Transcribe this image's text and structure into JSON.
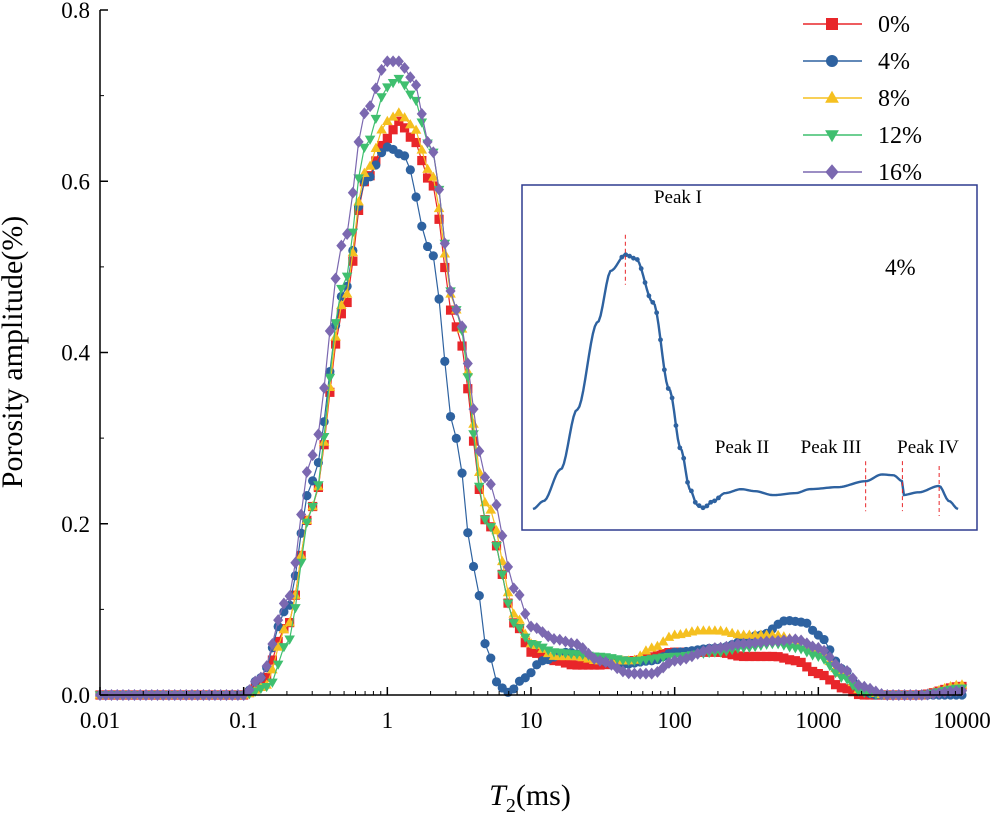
{
  "chart_data": {
    "type": "line",
    "xscale": "log",
    "xlim": [
      0.01,
      10000
    ],
    "ylim": [
      0,
      0.8
    ],
    "xticks": [
      0.01,
      0.1,
      1,
      10,
      100,
      1000,
      10000
    ],
    "xtick_labels": [
      "0.01",
      "0.1",
      "1",
      "10",
      "100",
      "1000",
      "10000"
    ],
    "yticks": [
      0,
      0.2,
      0.4,
      0.6,
      0.8
    ],
    "ytick_labels": [
      "0.0",
      "0.2",
      "0.4",
      "0.6",
      "0.8"
    ],
    "xlabel_main": "T",
    "xlabel_sub": "2",
    "xlabel_unit": "(ms)",
    "ylabel": "Porosity amplitude(%)",
    "legend_position": "top-right",
    "series": [
      {
        "name": "0%",
        "color": "#e8262a",
        "marker": "square",
        "points": [
          [
            0.01,
            0
          ],
          [
            0.1,
            0
          ],
          [
            0.13,
            0.01
          ],
          [
            0.2,
            0.08
          ],
          [
            0.3,
            0.22
          ],
          [
            0.5,
            0.45
          ],
          [
            0.7,
            0.6
          ],
          [
            1,
            0.65
          ],
          [
            1.2,
            0.67
          ],
          [
            1.5,
            0.65
          ],
          [
            2,
            0.6
          ],
          [
            3,
            0.43
          ],
          [
            5,
            0.2
          ],
          [
            8,
            0.08
          ],
          [
            10,
            0.05
          ],
          [
            15,
            0.04
          ],
          [
            20,
            0.035
          ],
          [
            30,
            0.035
          ],
          [
            50,
            0.04
          ],
          [
            100,
            0.05
          ],
          [
            200,
            0.05
          ],
          [
            300,
            0.045
          ],
          [
            500,
            0.045
          ],
          [
            700,
            0.04
          ],
          [
            1000,
            0.025
          ],
          [
            1500,
            0.008
          ],
          [
            2000,
            0
          ],
          [
            5000,
            0
          ],
          [
            10000,
            0.01
          ]
        ]
      },
      {
        "name": "4%",
        "color": "#2e62a0",
        "marker": "circle",
        "points": [
          [
            0.01,
            0
          ],
          [
            0.1,
            0
          ],
          [
            0.13,
            0.02
          ],
          [
            0.2,
            0.1
          ],
          [
            0.3,
            0.25
          ],
          [
            0.5,
            0.47
          ],
          [
            0.7,
            0.6
          ],
          [
            1,
            0.64
          ],
          [
            1.3,
            0.63
          ],
          [
            2,
            0.52
          ],
          [
            3,
            0.3
          ],
          [
            4,
            0.15
          ],
          [
            5,
            0.05
          ],
          [
            6,
            0.01
          ],
          [
            7,
            0.003
          ],
          [
            9,
            0.02
          ],
          [
            12,
            0.04
          ],
          [
            18,
            0.05
          ],
          [
            25,
            0.045
          ],
          [
            40,
            0.035
          ],
          [
            70,
            0.04
          ],
          [
            100,
            0.05
          ],
          [
            200,
            0.055
          ],
          [
            400,
            0.07
          ],
          [
            600,
            0.087
          ],
          [
            800,
            0.085
          ],
          [
            1000,
            0.07
          ],
          [
            1500,
            0.03
          ],
          [
            2000,
            0.005
          ],
          [
            2500,
            0
          ],
          [
            10000,
            0
          ]
        ]
      },
      {
        "name": "8%",
        "color": "#f5c020",
        "marker": "triangle-up",
        "points": [
          [
            0.01,
            0
          ],
          [
            0.1,
            0
          ],
          [
            0.14,
            0.01
          ],
          [
            0.2,
            0.08
          ],
          [
            0.3,
            0.22
          ],
          [
            0.5,
            0.46
          ],
          [
            0.7,
            0.61
          ],
          [
            1,
            0.67
          ],
          [
            1.2,
            0.68
          ],
          [
            1.5,
            0.665
          ],
          [
            2,
            0.61
          ],
          [
            3,
            0.45
          ],
          [
            5,
            0.22
          ],
          [
            8,
            0.09
          ],
          [
            10,
            0.06
          ],
          [
            15,
            0.045
          ],
          [
            20,
            0.045
          ],
          [
            30,
            0.04
          ],
          [
            50,
            0.04
          ],
          [
            70,
            0.055
          ],
          [
            100,
            0.07
          ],
          [
            150,
            0.075
          ],
          [
            200,
            0.075
          ],
          [
            300,
            0.07
          ],
          [
            500,
            0.07
          ],
          [
            700,
            0.065
          ],
          [
            1000,
            0.05
          ],
          [
            1500,
            0.025
          ],
          [
            2000,
            0.005
          ],
          [
            3000,
            0
          ],
          [
            5000,
            0
          ],
          [
            10000,
            0.012
          ]
        ]
      },
      {
        "name": "12%",
        "color": "#3fbf6f",
        "marker": "triangle-down",
        "points": [
          [
            0.01,
            0
          ],
          [
            0.1,
            0
          ],
          [
            0.15,
            0.01
          ],
          [
            0.2,
            0.06
          ],
          [
            0.3,
            0.22
          ],
          [
            0.5,
            0.48
          ],
          [
            0.7,
            0.64
          ],
          [
            1,
            0.71
          ],
          [
            1.2,
            0.72
          ],
          [
            1.5,
            0.7
          ],
          [
            2,
            0.64
          ],
          [
            3,
            0.45
          ],
          [
            5,
            0.2
          ],
          [
            8,
            0.08
          ],
          [
            10,
            0.06
          ],
          [
            15,
            0.05
          ],
          [
            20,
            0.048
          ],
          [
            30,
            0.045
          ],
          [
            50,
            0.04
          ],
          [
            100,
            0.045
          ],
          [
            200,
            0.05
          ],
          [
            300,
            0.055
          ],
          [
            500,
            0.06
          ],
          [
            700,
            0.055
          ],
          [
            1000,
            0.045
          ],
          [
            1500,
            0.02
          ],
          [
            2000,
            0.003
          ],
          [
            3000,
            0
          ],
          [
            5000,
            0
          ],
          [
            10000,
            0.008
          ]
        ]
      },
      {
        "name": "16%",
        "color": "#7b68b0",
        "marker": "diamond",
        "points": [
          [
            0.01,
            0
          ],
          [
            0.1,
            0
          ],
          [
            0.13,
            0.02
          ],
          [
            0.2,
            0.11
          ],
          [
            0.3,
            0.28
          ],
          [
            0.5,
            0.53
          ],
          [
            0.7,
            0.68
          ],
          [
            1,
            0.74
          ],
          [
            1.2,
            0.74
          ],
          [
            1.5,
            0.72
          ],
          [
            2,
            0.64
          ],
          [
            3,
            0.45
          ],
          [
            5,
            0.25
          ],
          [
            8,
            0.12
          ],
          [
            10,
            0.08
          ],
          [
            15,
            0.065
          ],
          [
            20,
            0.06
          ],
          [
            30,
            0.04
          ],
          [
            50,
            0.025
          ],
          [
            70,
            0.025
          ],
          [
            100,
            0.04
          ],
          [
            200,
            0.055
          ],
          [
            300,
            0.06
          ],
          [
            500,
            0.063
          ],
          [
            700,
            0.065
          ],
          [
            1000,
            0.055
          ],
          [
            1500,
            0.03
          ],
          [
            2000,
            0.01
          ],
          [
            3000,
            0
          ],
          [
            5000,
            0
          ],
          [
            10000,
            0.005
          ]
        ]
      }
    ],
    "inset": {
      "label": "4%",
      "peak_labels": [
        "Peak I",
        "Peak II",
        "Peak III",
        "Peak IV"
      ],
      "peak_x": [
        1,
        400,
        1000,
        2500
      ],
      "series_ref": "4%"
    }
  }
}
